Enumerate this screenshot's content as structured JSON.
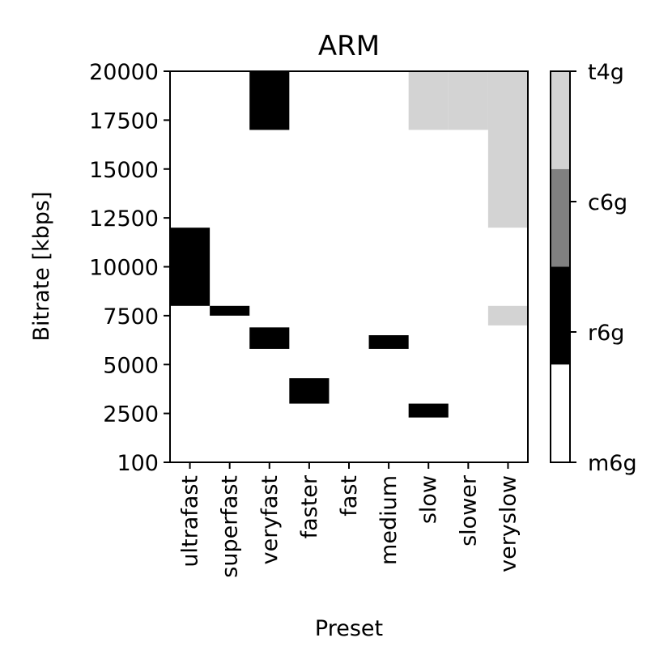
{
  "chart_data": {
    "type": "heatmap",
    "title": "ARM",
    "xlabel": "Preset",
    "ylabel": "Bitrate [kbps]",
    "categories": [
      "ultrafast",
      "superfast",
      "veryfast",
      "faster",
      "fast",
      "medium",
      "slow",
      "slower",
      "veryslow"
    ],
    "y_tick_labels": [
      "100",
      "2500",
      "5000",
      "7500",
      "10000",
      "12500",
      "15000",
      "17500",
      "20000"
    ],
    "y_ticks": [
      100,
      2500,
      5000,
      7500,
      10000,
      12500,
      15000,
      17500,
      20000
    ],
    "ylim": [
      100,
      20000
    ],
    "background_class": "m6g",
    "colorbar": {
      "labels": [
        "m6g",
        "r6g",
        "c6g",
        "t4g"
      ],
      "colors": {
        "m6g": "#ffffff",
        "r6g": "#000000",
        "c6g": "#808080",
        "t4g": "#d3d3d3"
      }
    },
    "cells": [
      {
        "preset": "veryfast",
        "from": 17000,
        "to": 20000,
        "instance": "r6g"
      },
      {
        "preset": "slow",
        "from": 17000,
        "to": 20000,
        "instance": "t4g"
      },
      {
        "preset": "slower",
        "from": 17000,
        "to": 20000,
        "instance": "t4g"
      },
      {
        "preset": "veryslow",
        "from": 12000,
        "to": 20000,
        "instance": "t4g"
      },
      {
        "preset": "ultrafast",
        "from": 8000,
        "to": 12000,
        "instance": "r6g"
      },
      {
        "preset": "superfast",
        "from": 7500,
        "to": 8000,
        "instance": "r6g"
      },
      {
        "preset": "veryslow",
        "from": 7000,
        "to": 8000,
        "instance": "t4g"
      },
      {
        "preset": "veryfast",
        "from": 5800,
        "to": 6900,
        "instance": "r6g"
      },
      {
        "preset": "medium",
        "from": 5800,
        "to": 6500,
        "instance": "r6g"
      },
      {
        "preset": "faster",
        "from": 3000,
        "to": 4300,
        "instance": "r6g"
      },
      {
        "preset": "slow",
        "from": 2300,
        "to": 3000,
        "instance": "r6g"
      }
    ]
  }
}
